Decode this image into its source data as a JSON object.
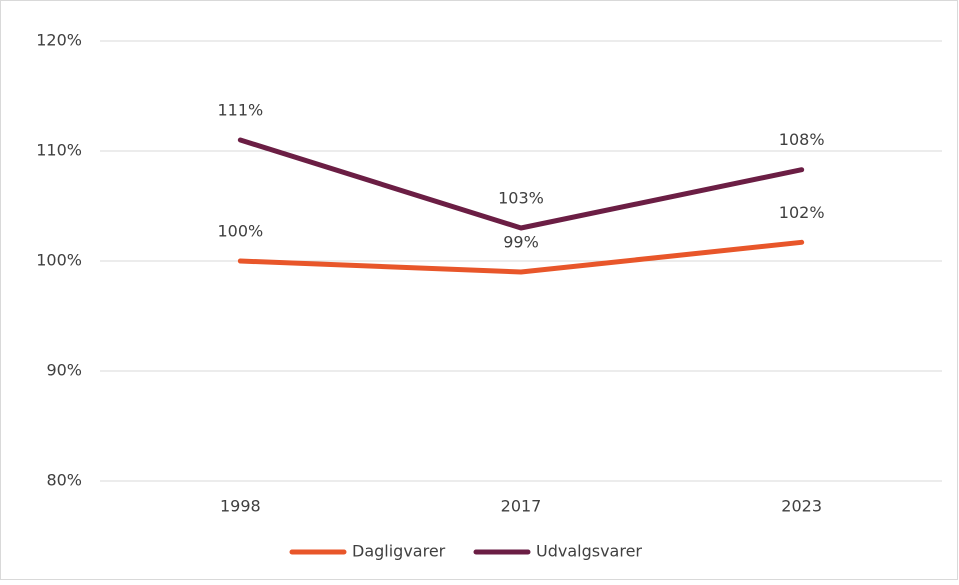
{
  "chart_data": {
    "type": "line",
    "categories": [
      "1998",
      "2017",
      "2023"
    ],
    "series": [
      {
        "name": "Dagligvarer",
        "color": "#e8562a",
        "values": [
          100,
          99,
          101.7
        ],
        "value_labels": [
          "100%",
          "99%",
          "102%"
        ]
      },
      {
        "name": "Udvalgsvarer",
        "color": "#6b1e44",
        "values": [
          111,
          103,
          108.3
        ],
        "value_labels": [
          "111%",
          "103%",
          "108%"
        ]
      }
    ],
    "ylim": [
      80,
      120
    ],
    "yticks": [
      {
        "value": 80,
        "label": "80%"
      },
      {
        "value": 90,
        "label": "90%"
      },
      {
        "value": 100,
        "label": "100%"
      },
      {
        "value": 110,
        "label": "110%"
      },
      {
        "value": 120,
        "label": "120%"
      }
    ],
    "grid": true,
    "legend": "bottom"
  }
}
